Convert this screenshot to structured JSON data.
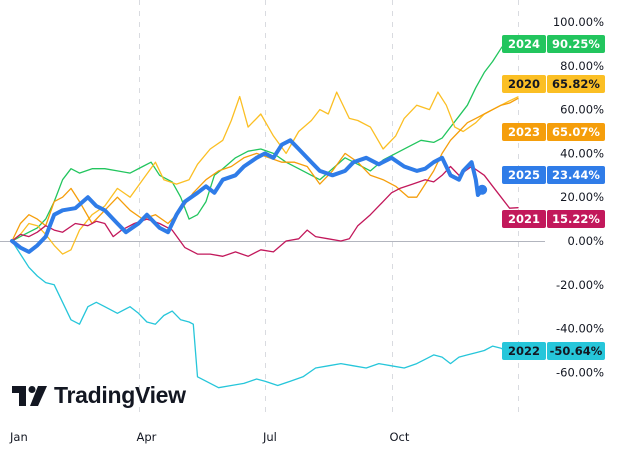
{
  "chart_data": {
    "type": "line",
    "title": "",
    "xlabel": "",
    "ylabel": "",
    "x_ticks": [
      "Jan",
      "Apr",
      "Jul",
      "Oct"
    ],
    "y_ticks": [
      "100.00%",
      "80.00%",
      "60.00%",
      "40.00%",
      "20.00%",
      "0.00%",
      "-20.00%",
      "-40.00%",
      "-60.00%"
    ],
    "y_tick_values": [
      100,
      80,
      60,
      40,
      20,
      0,
      -20,
      -40,
      -60
    ],
    "ylim": [
      -72,
      110
    ],
    "x_unit": "month (0 = Jan 1, 12 = Dec 31)",
    "xlim": [
      0,
      12
    ],
    "grid": "vertical dashed at quarter starts",
    "baseline": 0,
    "legend": "right-axis tags",
    "series": [
      {
        "name": "2024",
        "last_value": "90.25%",
        "color": "#22c55e",
        "text_color": "#ffffff",
        "points": [
          [
            0,
            0
          ],
          [
            0.2,
            2
          ],
          [
            0.4,
            4
          ],
          [
            0.6,
            6
          ],
          [
            0.8,
            10
          ],
          [
            1.0,
            18
          ],
          [
            1.2,
            28
          ],
          [
            1.4,
            33
          ],
          [
            1.6,
            31
          ],
          [
            1.9,
            33
          ],
          [
            2.2,
            33
          ],
          [
            2.5,
            32
          ],
          [
            2.8,
            31
          ],
          [
            3.1,
            34
          ],
          [
            3.3,
            36
          ],
          [
            3.5,
            30
          ],
          [
            3.8,
            27
          ],
          [
            4.0,
            20
          ],
          [
            4.2,
            10
          ],
          [
            4.4,
            12
          ],
          [
            4.6,
            18
          ],
          [
            4.8,
            30
          ],
          [
            5.0,
            33
          ],
          [
            5.3,
            38
          ],
          [
            5.6,
            41
          ],
          [
            5.9,
            42
          ],
          [
            6.2,
            40
          ],
          [
            6.5,
            36
          ],
          [
            6.8,
            33
          ],
          [
            7.1,
            30
          ],
          [
            7.3,
            28
          ],
          [
            7.6,
            33
          ],
          [
            7.9,
            38
          ],
          [
            8.2,
            35
          ],
          [
            8.5,
            32
          ],
          [
            8.8,
            37
          ],
          [
            9.1,
            40
          ],
          [
            9.4,
            43
          ],
          [
            9.7,
            46
          ],
          [
            10.0,
            45
          ],
          [
            10.2,
            47
          ],
          [
            10.4,
            52
          ],
          [
            10.6,
            57
          ],
          [
            10.8,
            62
          ],
          [
            11.0,
            70
          ],
          [
            11.2,
            77
          ],
          [
            11.4,
            82
          ],
          [
            11.6,
            88
          ],
          [
            11.8,
            93
          ],
          [
            12.0,
            90
          ]
        ]
      },
      {
        "name": "2020",
        "last_value": "65.82%",
        "color": "#fbbf24",
        "text_color": "#131722",
        "points": [
          [
            0,
            0
          ],
          [
            0.2,
            3
          ],
          [
            0.4,
            8
          ],
          [
            0.6,
            7
          ],
          [
            0.8,
            3
          ],
          [
            1.0,
            -2
          ],
          [
            1.2,
            -6
          ],
          [
            1.4,
            -4
          ],
          [
            1.6,
            5
          ],
          [
            1.9,
            12
          ],
          [
            2.2,
            16
          ],
          [
            2.5,
            24
          ],
          [
            2.8,
            20
          ],
          [
            3.1,
            28
          ],
          [
            3.4,
            36
          ],
          [
            3.6,
            28
          ],
          [
            3.9,
            26
          ],
          [
            4.2,
            28
          ],
          [
            4.4,
            35
          ],
          [
            4.7,
            42
          ],
          [
            5.0,
            46
          ],
          [
            5.2,
            55
          ],
          [
            5.4,
            66
          ],
          [
            5.6,
            52
          ],
          [
            5.9,
            58
          ],
          [
            6.2,
            48
          ],
          [
            6.5,
            40
          ],
          [
            6.8,
            50
          ],
          [
            7.1,
            55
          ],
          [
            7.3,
            60
          ],
          [
            7.5,
            58
          ],
          [
            7.7,
            68
          ],
          [
            8.0,
            56
          ],
          [
            8.2,
            55
          ],
          [
            8.5,
            52
          ],
          [
            8.8,
            42
          ],
          [
            9.1,
            48
          ],
          [
            9.3,
            56
          ],
          [
            9.6,
            62
          ],
          [
            9.9,
            60
          ],
          [
            10.1,
            68
          ],
          [
            10.3,
            62
          ],
          [
            10.5,
            52
          ],
          [
            10.7,
            50
          ],
          [
            11.0,
            54
          ],
          [
            11.2,
            58
          ],
          [
            11.4,
            60
          ],
          [
            11.6,
            62
          ],
          [
            11.8,
            64
          ],
          [
            12.0,
            65.8
          ]
        ]
      },
      {
        "name": "2023",
        "last_value": "65.07%",
        "color": "#f59e0b",
        "text_color": "#ffffff",
        "points": [
          [
            0,
            0
          ],
          [
            0.2,
            8
          ],
          [
            0.4,
            12
          ],
          [
            0.6,
            10
          ],
          [
            0.8,
            7
          ],
          [
            1.0,
            18
          ],
          [
            1.2,
            20
          ],
          [
            1.4,
            24
          ],
          [
            1.6,
            18
          ],
          [
            1.9,
            8
          ],
          [
            2.2,
            14
          ],
          [
            2.5,
            20
          ],
          [
            2.8,
            14
          ],
          [
            3.1,
            10
          ],
          [
            3.4,
            12
          ],
          [
            3.7,
            8
          ],
          [
            4.0,
            14
          ],
          [
            4.3,
            22
          ],
          [
            4.6,
            28
          ],
          [
            4.9,
            32
          ],
          [
            5.2,
            34
          ],
          [
            5.5,
            38
          ],
          [
            5.8,
            40
          ],
          [
            6.1,
            38
          ],
          [
            6.4,
            36
          ],
          [
            6.7,
            36
          ],
          [
            7.0,
            34
          ],
          [
            7.3,
            26
          ],
          [
            7.6,
            32
          ],
          [
            7.9,
            40
          ],
          [
            8.2,
            36
          ],
          [
            8.5,
            30
          ],
          [
            8.8,
            28
          ],
          [
            9.1,
            25
          ],
          [
            9.4,
            20
          ],
          [
            9.6,
            20
          ],
          [
            9.8,
            26
          ],
          [
            10.0,
            32
          ],
          [
            10.2,
            40
          ],
          [
            10.4,
            46
          ],
          [
            10.6,
            50
          ],
          [
            10.8,
            54
          ],
          [
            11.0,
            56
          ],
          [
            11.2,
            58
          ],
          [
            11.4,
            60
          ],
          [
            11.6,
            62
          ],
          [
            11.8,
            63
          ],
          [
            12.0,
            65.1
          ]
        ]
      },
      {
        "name": "2025",
        "last_value": "23.44%",
        "color": "#2f7ce8",
        "text_color": "#ffffff",
        "points": [
          [
            0,
            0
          ],
          [
            0.2,
            -3
          ],
          [
            0.4,
            -5
          ],
          [
            0.6,
            -2
          ],
          [
            0.8,
            2
          ],
          [
            1.0,
            12
          ],
          [
            1.2,
            14
          ],
          [
            1.5,
            15
          ],
          [
            1.8,
            20
          ],
          [
            2.0,
            16
          ],
          [
            2.2,
            14
          ],
          [
            2.5,
            8
          ],
          [
            2.7,
            4
          ],
          [
            3.0,
            8
          ],
          [
            3.2,
            12
          ],
          [
            3.5,
            6
          ],
          [
            3.7,
            4
          ],
          [
            3.9,
            12
          ],
          [
            4.1,
            18
          ],
          [
            4.4,
            22
          ],
          [
            4.6,
            25
          ],
          [
            4.8,
            22
          ],
          [
            5.0,
            28
          ],
          [
            5.3,
            30
          ],
          [
            5.5,
            34
          ],
          [
            5.8,
            38
          ],
          [
            6.0,
            40
          ],
          [
            6.2,
            38
          ],
          [
            6.4,
            44
          ],
          [
            6.6,
            46
          ],
          [
            6.8,
            42
          ],
          [
            7.1,
            36
          ],
          [
            7.3,
            32
          ],
          [
            7.6,
            30
          ],
          [
            7.9,
            32
          ],
          [
            8.1,
            36
          ],
          [
            8.4,
            38
          ],
          [
            8.7,
            35
          ],
          [
            9.0,
            38
          ],
          [
            9.3,
            34
          ],
          [
            9.6,
            32
          ],
          [
            9.8,
            33
          ],
          [
            10.0,
            36
          ],
          [
            10.2,
            38
          ],
          [
            10.4,
            30
          ],
          [
            10.6,
            28
          ],
          [
            10.7,
            32
          ],
          [
            10.9,
            36
          ],
          [
            11.0,
            28
          ],
          [
            11.05,
            21
          ],
          [
            11.15,
            23.4
          ]
        ]
      },
      {
        "name": "2021",
        "last_value": "15.22%",
        "color": "#c2185b",
        "text_color": "#ffffff",
        "points": [
          [
            0,
            0
          ],
          [
            0.2,
            3
          ],
          [
            0.4,
            2
          ],
          [
            0.6,
            4
          ],
          [
            0.8,
            7
          ],
          [
            1.0,
            5
          ],
          [
            1.2,
            4
          ],
          [
            1.5,
            8
          ],
          [
            1.8,
            7
          ],
          [
            2.0,
            9
          ],
          [
            2.2,
            8
          ],
          [
            2.4,
            2
          ],
          [
            2.6,
            5
          ],
          [
            2.9,
            8
          ],
          [
            3.2,
            10
          ],
          [
            3.5,
            8
          ],
          [
            3.8,
            5
          ],
          [
            4.1,
            -3
          ],
          [
            4.4,
            -6
          ],
          [
            4.7,
            -6
          ],
          [
            5.0,
            -7
          ],
          [
            5.3,
            -5
          ],
          [
            5.6,
            -7
          ],
          [
            5.9,
            -4
          ],
          [
            6.2,
            -5
          ],
          [
            6.5,
            0
          ],
          [
            6.8,
            1
          ],
          [
            7.0,
            5
          ],
          [
            7.2,
            2
          ],
          [
            7.5,
            1
          ],
          [
            7.8,
            0
          ],
          [
            8.0,
            1
          ],
          [
            8.2,
            7
          ],
          [
            8.5,
            12
          ],
          [
            8.8,
            18
          ],
          [
            9.0,
            22
          ],
          [
            9.2,
            24
          ],
          [
            9.5,
            26
          ],
          [
            9.8,
            28
          ],
          [
            10.0,
            27
          ],
          [
            10.2,
            30
          ],
          [
            10.4,
            34
          ],
          [
            10.6,
            30
          ],
          [
            10.9,
            34
          ],
          [
            11.2,
            30
          ],
          [
            11.4,
            25
          ],
          [
            11.6,
            20
          ],
          [
            11.8,
            15
          ],
          [
            12.0,
            15.2
          ]
        ]
      },
      {
        "name": "2022",
        "last_value": "-50.64%",
        "color": "#26c6da",
        "text_color": "#131722",
        "points": [
          [
            0,
            0
          ],
          [
            0.2,
            -6
          ],
          [
            0.4,
            -12
          ],
          [
            0.6,
            -16
          ],
          [
            0.8,
            -19
          ],
          [
            1.0,
            -20
          ],
          [
            1.2,
            -28
          ],
          [
            1.4,
            -36
          ],
          [
            1.6,
            -38
          ],
          [
            1.8,
            -30
          ],
          [
            2.0,
            -28
          ],
          [
            2.2,
            -30
          ],
          [
            2.5,
            -33
          ],
          [
            2.8,
            -30
          ],
          [
            3.0,
            -33
          ],
          [
            3.2,
            -37
          ],
          [
            3.4,
            -38
          ],
          [
            3.6,
            -34
          ],
          [
            3.8,
            -32
          ],
          [
            4.0,
            -36
          ],
          [
            4.2,
            -37
          ],
          [
            4.3,
            -38
          ],
          [
            4.4,
            -62
          ],
          [
            4.6,
            -64
          ],
          [
            4.9,
            -67
          ],
          [
            5.2,
            -66
          ],
          [
            5.5,
            -65
          ],
          [
            5.8,
            -63
          ],
          [
            6.0,
            -64
          ],
          [
            6.3,
            -66
          ],
          [
            6.6,
            -64
          ],
          [
            6.9,
            -62
          ],
          [
            7.2,
            -58
          ],
          [
            7.5,
            -57
          ],
          [
            7.8,
            -56
          ],
          [
            8.1,
            -57
          ],
          [
            8.4,
            -58
          ],
          [
            8.7,
            -56
          ],
          [
            9.0,
            -57
          ],
          [
            9.3,
            -58
          ],
          [
            9.6,
            -56
          ],
          [
            9.8,
            -54
          ],
          [
            10.0,
            -52
          ],
          [
            10.2,
            -53
          ],
          [
            10.4,
            -56
          ],
          [
            10.6,
            -53
          ],
          [
            10.8,
            -52
          ],
          [
            11.0,
            -51
          ],
          [
            11.2,
            -50
          ],
          [
            11.4,
            -48
          ],
          [
            11.6,
            -49
          ],
          [
            11.8,
            -51
          ],
          [
            12.0,
            -50.6
          ]
        ]
      }
    ],
    "tags_order": [
      "2024",
      "2020",
      "2023",
      "2025",
      "2021",
      "2022"
    ]
  },
  "branding": {
    "logo_text": "TradingView"
  }
}
